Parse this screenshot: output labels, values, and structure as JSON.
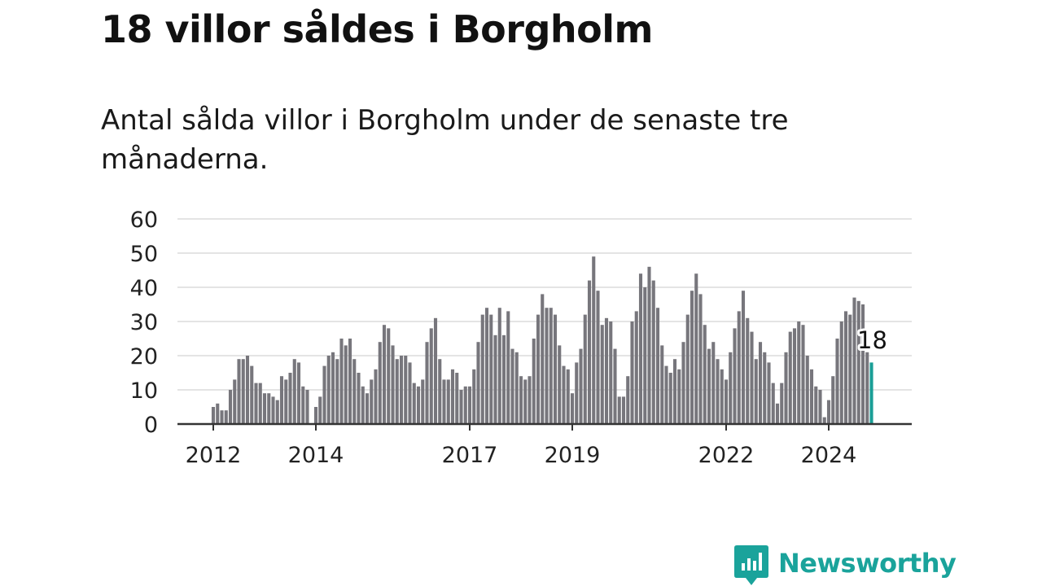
{
  "title": "18 villor såldes i Borgholm",
  "subtitle": "Antal sålda villor i Borgholm under de senaste tre månaderna.",
  "brand": {
    "name": "Newsworthy",
    "icon": "newsworthy-logo-icon",
    "color": "#1aa39b"
  },
  "chart_data": {
    "type": "bar",
    "title": "18 villor såldes i Borgholm",
    "subtitle": "Antal sålda villor i Borgholm under de senaste tre månaderna.",
    "xlabel": "",
    "ylabel": "",
    "ylim": [
      0,
      60
    ],
    "y_ticks": [
      0,
      10,
      20,
      30,
      40,
      50,
      60
    ],
    "x_ticks": [
      {
        "label": "2012",
        "index": 0
      },
      {
        "label": "2014",
        "index": 24
      },
      {
        "label": "2017",
        "index": 60
      },
      {
        "label": "2019",
        "index": 84
      },
      {
        "label": "2022",
        "index": 120
      },
      {
        "label": "2024",
        "index": 144
      }
    ],
    "grid": true,
    "legend": "none",
    "bar_color": "#77767c",
    "highlight_color": "#1a9e96",
    "highlight_label": "18",
    "first_period": "2012-01",
    "period": "rolling 3 months, monthly",
    "values": [
      5,
      6,
      4,
      4,
      10,
      13,
      19,
      19,
      20,
      17,
      12,
      12,
      9,
      9,
      8,
      7,
      14,
      13,
      15,
      19,
      18,
      11,
      10,
      0,
      5,
      8,
      17,
      20,
      21,
      19,
      25,
      23,
      25,
      19,
      15,
      11,
      9,
      13,
      16,
      24,
      29,
      28,
      23,
      19,
      20,
      20,
      18,
      12,
      11,
      13,
      24,
      28,
      31,
      19,
      13,
      13,
      16,
      15,
      10,
      11,
      11,
      16,
      24,
      32,
      34,
      32,
      26,
      34,
      26,
      33,
      22,
      21,
      14,
      13,
      14,
      25,
      32,
      38,
      34,
      34,
      32,
      23,
      17,
      16,
      9,
      18,
      22,
      32,
      42,
      49,
      39,
      29,
      31,
      30,
      22,
      8,
      8,
      14,
      30,
      33,
      44,
      40,
      46,
      42,
      34,
      23,
      17,
      15,
      19,
      16,
      24,
      32,
      39,
      44,
      38,
      29,
      22,
      24,
      19,
      16,
      13,
      21,
      28,
      33,
      39,
      31,
      27,
      19,
      24,
      21,
      18,
      12,
      6,
      12,
      21,
      27,
      28,
      30,
      29,
      20,
      16,
      11,
      10,
      2,
      7,
      14,
      25,
      30,
      33,
      32,
      37,
      36,
      35,
      21,
      18
    ]
  }
}
